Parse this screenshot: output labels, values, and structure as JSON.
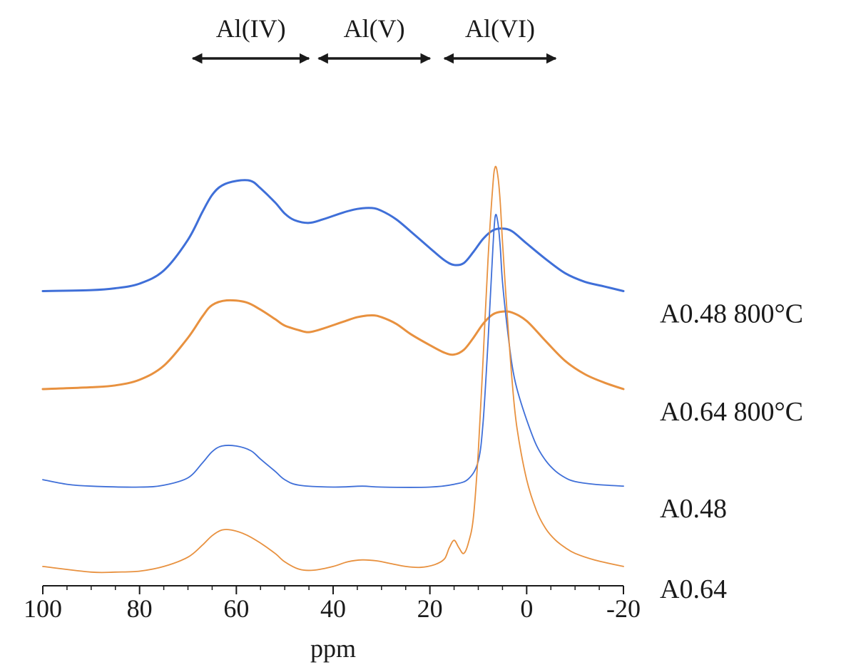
{
  "chart_data": {
    "type": "line",
    "title": "",
    "xlabel": "ppm",
    "ylabel": "",
    "xlim": [
      100,
      -20
    ],
    "x_reversed": true,
    "y_axis_shown": false,
    "grid": false,
    "xticks": [
      100,
      80,
      60,
      40,
      20,
      0,
      -20
    ],
    "xtick_labels": [
      "100",
      "80",
      "60",
      "40",
      "20",
      "0",
      "-20"
    ],
    "regions": [
      {
        "label": "Al(IV)",
        "from": 69,
        "to": 45
      },
      {
        "label": "Al(V)",
        "from": 43,
        "to": 20
      },
      {
        "label": "Al(VI)",
        "from": 17,
        "to": -6
      }
    ],
    "series": [
      {
        "name": "A0.48 800°C",
        "color": "#3f6fd8",
        "baseline": 3.05,
        "points": [
          [
            100,
            0.0
          ],
          [
            90,
            0.01
          ],
          [
            85,
            0.03
          ],
          [
            80,
            0.08
          ],
          [
            75,
            0.22
          ],
          [
            70,
            0.55
          ],
          [
            67,
            0.85
          ],
          [
            65,
            1.03
          ],
          [
            63,
            1.13
          ],
          [
            60,
            1.18
          ],
          [
            57,
            1.18
          ],
          [
            55,
            1.1
          ],
          [
            52,
            0.95
          ],
          [
            50,
            0.83
          ],
          [
            48,
            0.76
          ],
          [
            45,
            0.73
          ],
          [
            42,
            0.77
          ],
          [
            38,
            0.84
          ],
          [
            35,
            0.88
          ],
          [
            32,
            0.89
          ],
          [
            30,
            0.86
          ],
          [
            27,
            0.77
          ],
          [
            24,
            0.64
          ],
          [
            20,
            0.46
          ],
          [
            17,
            0.33
          ],
          [
            15,
            0.28
          ],
          [
            13,
            0.3
          ],
          [
            11,
            0.42
          ],
          [
            9,
            0.56
          ],
          [
            7,
            0.65
          ],
          [
            5,
            0.67
          ],
          [
            3,
            0.64
          ],
          [
            0,
            0.51
          ],
          [
            -4,
            0.34
          ],
          [
            -8,
            0.19
          ],
          [
            -12,
            0.1
          ],
          [
            -16,
            0.05
          ],
          [
            -20,
            0.0
          ]
        ]
      },
      {
        "name": "A0.64 800°C",
        "color": "#e8913f",
        "baseline": 2.0,
        "points": [
          [
            100,
            0.0
          ],
          [
            90,
            0.02
          ],
          [
            85,
            0.04
          ],
          [
            80,
            0.1
          ],
          [
            75,
            0.25
          ],
          [
            70,
            0.55
          ],
          [
            67,
            0.78
          ],
          [
            65,
            0.9
          ],
          [
            62,
            0.95
          ],
          [
            58,
            0.93
          ],
          [
            55,
            0.85
          ],
          [
            52,
            0.75
          ],
          [
            50,
            0.68
          ],
          [
            47,
            0.63
          ],
          [
            45,
            0.61
          ],
          [
            42,
            0.65
          ],
          [
            38,
            0.72
          ],
          [
            35,
            0.77
          ],
          [
            32,
            0.79
          ],
          [
            30,
            0.77
          ],
          [
            27,
            0.7
          ],
          [
            24,
            0.59
          ],
          [
            20,
            0.47
          ],
          [
            17,
            0.39
          ],
          [
            15,
            0.37
          ],
          [
            13,
            0.42
          ],
          [
            11,
            0.55
          ],
          [
            9,
            0.7
          ],
          [
            7,
            0.8
          ],
          [
            5,
            0.83
          ],
          [
            3,
            0.82
          ],
          [
            0,
            0.73
          ],
          [
            -4,
            0.51
          ],
          [
            -8,
            0.3
          ],
          [
            -12,
            0.16
          ],
          [
            -16,
            0.07
          ],
          [
            -20,
            0.0
          ]
        ]
      },
      {
        "name": "A0.48",
        "color": "#3f6fd8",
        "baseline": 0.95,
        "points": [
          [
            100,
            0.08
          ],
          [
            95,
            0.03
          ],
          [
            90,
            0.01
          ],
          [
            80,
            0.0
          ],
          [
            75,
            0.02
          ],
          [
            70,
            0.1
          ],
          [
            67,
            0.26
          ],
          [
            65,
            0.38
          ],
          [
            63,
            0.44
          ],
          [
            60,
            0.44
          ],
          [
            57,
            0.39
          ],
          [
            55,
            0.3
          ],
          [
            52,
            0.17
          ],
          [
            50,
            0.08
          ],
          [
            47,
            0.02
          ],
          [
            40,
            0.0
          ],
          [
            34,
            0.01
          ],
          [
            30,
            0.0
          ],
          [
            20,
            0.0
          ],
          [
            15,
            0.03
          ],
          [
            12,
            0.09
          ],
          [
            10,
            0.28
          ],
          [
            9,
            0.7
          ],
          [
            8,
            1.55
          ],
          [
            7,
            2.55
          ],
          [
            6.5,
            2.9
          ],
          [
            6,
            2.85
          ],
          [
            5.5,
            2.6
          ],
          [
            5,
            2.2
          ],
          [
            4,
            1.7
          ],
          [
            3,
            1.3
          ],
          [
            2,
            1.05
          ],
          [
            0,
            0.72
          ],
          [
            -2,
            0.45
          ],
          [
            -4,
            0.28
          ],
          [
            -6,
            0.17
          ],
          [
            -8,
            0.1
          ],
          [
            -10,
            0.06
          ],
          [
            -14,
            0.03
          ],
          [
            -20,
            0.01
          ]
        ]
      },
      {
        "name": "A0.64",
        "color": "#e8913f",
        "baseline": 0.08,
        "points": [
          [
            100,
            0.02
          ],
          [
            90,
            -0.04
          ],
          [
            85,
            -0.04
          ],
          [
            80,
            -0.03
          ],
          [
            75,
            0.02
          ],
          [
            70,
            0.12
          ],
          [
            67,
            0.25
          ],
          [
            65,
            0.35
          ],
          [
            63,
            0.41
          ],
          [
            61,
            0.41
          ],
          [
            58,
            0.36
          ],
          [
            55,
            0.27
          ],
          [
            52,
            0.16
          ],
          [
            50,
            0.07
          ],
          [
            47,
            -0.01
          ],
          [
            44,
            -0.02
          ],
          [
            40,
            0.02
          ],
          [
            37,
            0.07
          ],
          [
            34,
            0.09
          ],
          [
            31,
            0.08
          ],
          [
            28,
            0.05
          ],
          [
            25,
            0.02
          ],
          [
            22,
            0.01
          ],
          [
            19,
            0.04
          ],
          [
            17,
            0.1
          ],
          [
            16,
            0.22
          ],
          [
            15,
            0.3
          ],
          [
            14,
            0.22
          ],
          [
            13,
            0.16
          ],
          [
            12,
            0.28
          ],
          [
            11,
            0.55
          ],
          [
            10,
            1.25
          ],
          [
            9,
            2.25
          ],
          [
            8,
            3.3
          ],
          [
            7,
            4.1
          ],
          [
            6.5,
            4.3
          ],
          [
            6,
            4.22
          ],
          [
            5.5,
            3.95
          ],
          [
            5,
            3.5
          ],
          [
            4,
            2.7
          ],
          [
            3,
            2.0
          ],
          [
            2,
            1.5
          ],
          [
            0,
            0.95
          ],
          [
            -2,
            0.62
          ],
          [
            -4,
            0.42
          ],
          [
            -6,
            0.3
          ],
          [
            -8,
            0.22
          ],
          [
            -10,
            0.16
          ],
          [
            -14,
            0.09
          ],
          [
            -20,
            0.02
          ]
        ]
      }
    ]
  }
}
